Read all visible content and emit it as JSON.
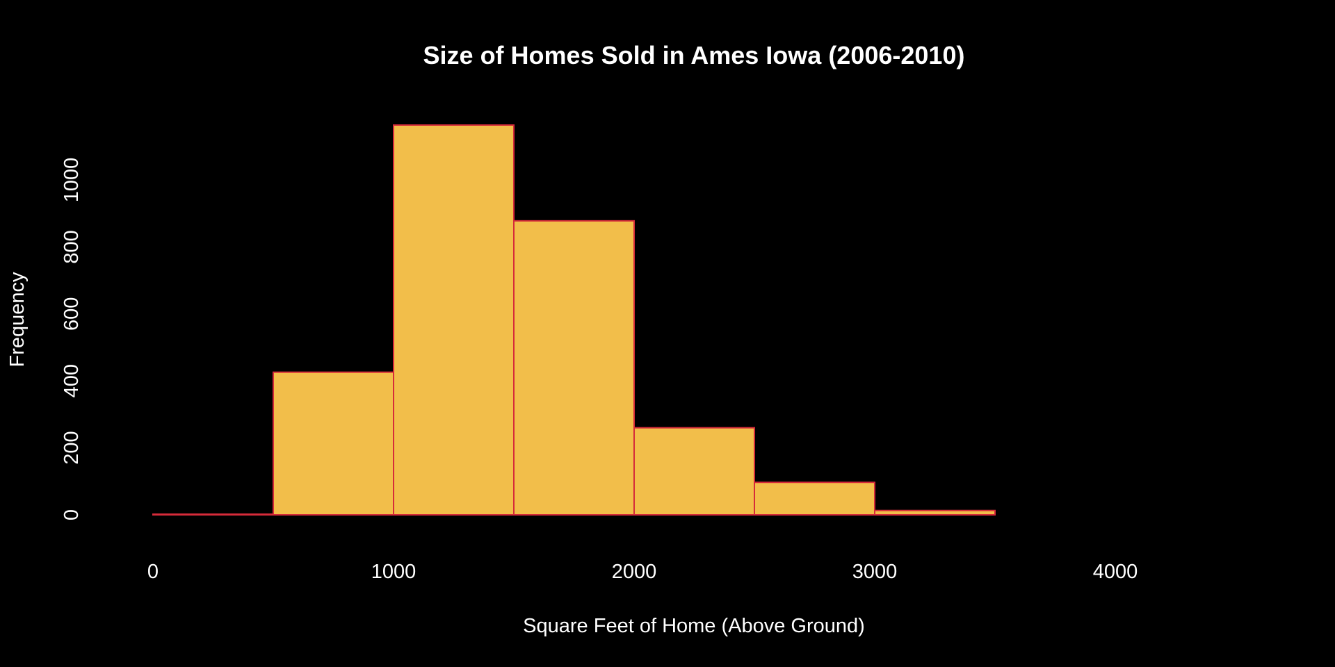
{
  "chart_data": {
    "type": "bar",
    "title": "Size of Homes Sold in Ames Iowa (2006-2010)",
    "xlabel": "Square Feet of Home (Above Ground)",
    "ylabel": "Frequency",
    "bins": [
      {
        "start": 0,
        "end": 500,
        "count": 2
      },
      {
        "start": 500,
        "end": 1000,
        "count": 426
      },
      {
        "start": 1000,
        "end": 1500,
        "count": 1164
      },
      {
        "start": 1500,
        "end": 2000,
        "count": 878
      },
      {
        "start": 2000,
        "end": 2500,
        "count": 260
      },
      {
        "start": 2500,
        "end": 3000,
        "count": 97
      },
      {
        "start": 3000,
        "end": 3500,
        "count": 13
      },
      {
        "start": 3500,
        "end": 4000,
        "count": 0
      },
      {
        "start": 4000,
        "end": 4500,
        "count": 0
      }
    ],
    "xticks": [
      0,
      1000,
      2000,
      3000,
      4000
    ],
    "yticks": [
      0,
      200,
      400,
      600,
      800,
      1000
    ],
    "xlim": [
      0,
      4500
    ],
    "ylim": [
      0,
      1164
    ],
    "grid": false,
    "legend": "none",
    "colors": {
      "background": "#000000",
      "bar_fill": "#F2BE4A",
      "bar_border": "#D62B3A",
      "text": "#ffffff"
    }
  }
}
